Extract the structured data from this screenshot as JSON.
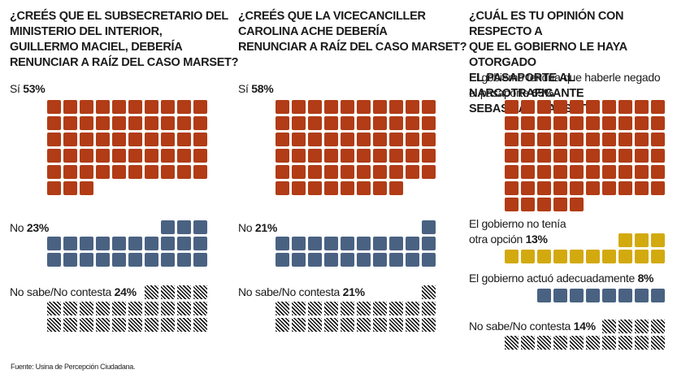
{
  "chart_data": [
    {
      "type": "waffle",
      "title": "¿CREÉS QUE EL SUBSECRETARIO DEL MINISTERIO DEL INTERIOR, GUILLERMO MACIEL, DEBERÍA RENUNCIAR A RAÍZ DEL CASO MARSET?",
      "title_lines": [
        "¿CREÉS QUE EL SUBSECRETARIO DEL",
        "MINISTERIO DEL INTERIOR,",
        "GUILLERMO MACIEL, DEBERÍA",
        "RENUNCIAR A RAÍZ DEL CASO MARSET?"
      ],
      "unit": "%",
      "categories": [
        {
          "label": "Sí",
          "value": 53,
          "color": "#b13c16",
          "pattern": "solid"
        },
        {
          "label": "No",
          "value": 23,
          "color": "#4a6282",
          "pattern": "solid"
        },
        {
          "label": "No sabe/No contesta",
          "value": 24,
          "color": "#111111",
          "pattern": "hatch"
        }
      ]
    },
    {
      "type": "waffle",
      "title": "¿CREÉS QUE LA VICECANCILLER CAROLINA ACHE DEBERÍA RENUNCIAR A RAÍZ DEL CASO MARSET?",
      "title_lines": [
        "¿CREÉS QUE LA VICECANCILLER",
        "CAROLINA ACHE DEBERÍA",
        "RENUNCIAR A RAÍZ DEL CASO MARSET?"
      ],
      "unit": "%",
      "categories": [
        {
          "label": "Sí",
          "value": 58,
          "color": "#b13c16",
          "pattern": "solid"
        },
        {
          "label": "No",
          "value": 21,
          "color": "#4a6282",
          "pattern": "solid"
        },
        {
          "label": "No sabe/No contesta",
          "value": 21,
          "color": "#111111",
          "pattern": "hatch"
        }
      ]
    },
    {
      "type": "waffle",
      "title": "¿CUÁL ES TU OPINIÓN CON RESPECTO A QUE EL GOBIERNO LE HAYA OTORGADO EL PASAPORTE AL NARCOTRAFICANTE SEBASTIÁN MARSET?",
      "title_lines": [
        "¿CUÁL ES TU OPINIÓN CON RESPECTO A",
        "QUE EL GOBIERNO LE HAYA OTORGADO",
        "EL PASAPORTE AL NARCOTRAFICANTE",
        "SEBASTIÁN MARSET?"
      ],
      "unit": "%",
      "categories": [
        {
          "label": "El gobierno tendría que haberle negado el pasaporte",
          "label_lines": [
            "El gobierno tendría que haberle negado",
            "el pasaporte"
          ],
          "value": 65,
          "color": "#b13c16",
          "pattern": "solid"
        },
        {
          "label": "El gobierno no tenía otra opción",
          "label_lines": [
            "El gobierno no tenía",
            "otra opción"
          ],
          "value": 13,
          "color": "#d2aa10",
          "pattern": "solid"
        },
        {
          "label": "El gobierno actuó adecuadamente",
          "label_lines": [
            "El gobierno actuó adecuadamente"
          ],
          "value": 8,
          "color": "#4a6282",
          "pattern": "solid"
        },
        {
          "label": "No sabe/No contesta",
          "label_lines": [
            "No sabe/No contesta"
          ],
          "value": 14,
          "color": "#111111",
          "pattern": "hatch"
        }
      ]
    }
  ],
  "footer": {
    "source": "Fuente: Usina de Percepción Ciudadana."
  }
}
